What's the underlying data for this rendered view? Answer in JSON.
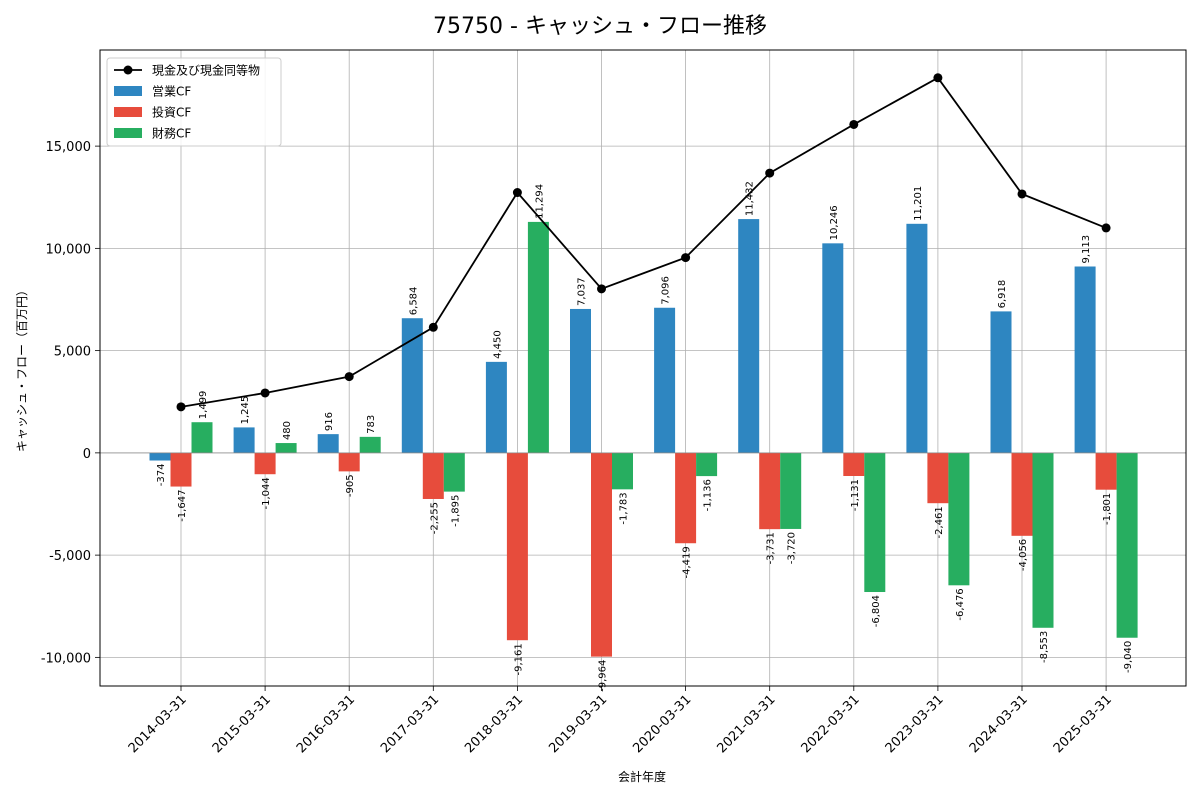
{
  "chart_data": {
    "type": "bar",
    "title": "75750 - キャッシュ・フロー推移",
    "xlabel": "会計年度",
    "ylabel": "キャッシュ・フロー（百万円）",
    "ylim": [
      -11400,
      19700
    ],
    "yticks": [
      -10000,
      -5000,
      0,
      5000,
      10000,
      15000
    ],
    "ytick_labels": [
      "-10,000",
      "-5,000",
      "0",
      "5,000",
      "10,000",
      "15,000"
    ],
    "grid": true,
    "legend_position": "top-left",
    "categories": [
      "2014-03-31",
      "2015-03-31",
      "2016-03-31",
      "2017-03-31",
      "2018-03-31",
      "2019-03-31",
      "2020-03-31",
      "2021-03-31",
      "2022-03-31",
      "2023-03-31",
      "2024-03-31",
      "2025-03-31"
    ],
    "series": [
      {
        "name": "営業CF",
        "kind": "bar",
        "color": "#2e86c1",
        "values": [
          -374,
          1245,
          916,
          6584,
          4450,
          7037,
          7096,
          11432,
          10246,
          11201,
          6918,
          9113
        ],
        "labels": [
          "-374",
          "1,245",
          "916",
          "6,584",
          "4,450",
          "7,037",
          "7,096",
          "11,432",
          "10,246",
          "11,201",
          "6,918",
          "9,113"
        ]
      },
      {
        "name": "投資CF",
        "kind": "bar",
        "color": "#e74c3c",
        "values": [
          -1647,
          -1044,
          -905,
          -2255,
          -9161,
          -9964,
          -4419,
          -3731,
          -1131,
          -2461,
          -4056,
          -1801
        ],
        "labels": [
          "-1,647",
          "-1,044",
          "-905",
          "-2,255",
          "-9,161",
          "-9,964",
          "-4,419",
          "-3,731",
          "-1,131",
          "-2,461",
          "-4,056",
          "-1,801"
        ]
      },
      {
        "name": "財務CF",
        "kind": "bar",
        "color": "#27ae60",
        "values": [
          1499,
          480,
          783,
          -1895,
          11294,
          -1783,
          -1136,
          -3720,
          -6804,
          -6476,
          -8553,
          -9040
        ],
        "labels": [
          "1,499",
          "480",
          "783",
          "-1,895",
          "11,294",
          "-1,783",
          "-1,136",
          "-3,720",
          "-6,804",
          "-6,476",
          "-8,553",
          "-9,040"
        ]
      },
      {
        "name": "現金及び現金同等物",
        "kind": "line",
        "color": "#000000",
        "values": [
          2250,
          2930,
          3730,
          6140,
          12730,
          8020,
          9550,
          13680,
          16060,
          18340,
          12660,
          11000
        ]
      }
    ]
  }
}
